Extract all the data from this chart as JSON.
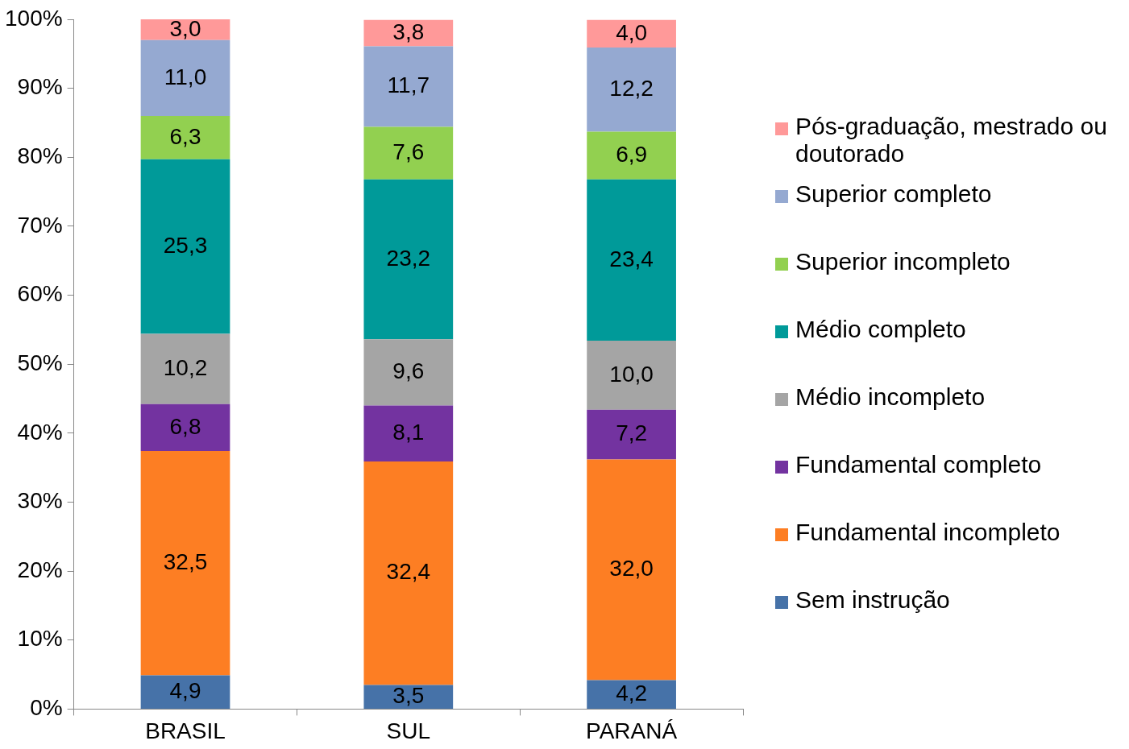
{
  "chart_data": {
    "type": "bar",
    "stacked": true,
    "categories": [
      "BRASIL",
      "SUL",
      "PARANÁ"
    ],
    "ylim": [
      0,
      100
    ],
    "yticks": [
      {
        "value": 0,
        "label": "0%"
      },
      {
        "value": 10,
        "label": "10%"
      },
      {
        "value": 20,
        "label": "20%"
      },
      {
        "value": 30,
        "label": "30%"
      },
      {
        "value": 40,
        "label": "40%"
      },
      {
        "value": 50,
        "label": "50%"
      },
      {
        "value": 60,
        "label": "60%"
      },
      {
        "value": 70,
        "label": "70%"
      },
      {
        "value": 80,
        "label": "80%"
      },
      {
        "value": 90,
        "label": "90%"
      },
      {
        "value": 100,
        "label": "100%"
      }
    ],
    "grid": false,
    "legend": "right",
    "series": [
      {
        "name": "Sem instrução",
        "color": "#4672a8",
        "values": [
          4.9,
          3.5,
          4.2
        ],
        "value_labels": [
          "4,9",
          "3,5",
          "4,2"
        ]
      },
      {
        "name": "Fundamental incompleto",
        "color": "#fd7e23",
        "values": [
          32.5,
          32.4,
          32.0
        ],
        "value_labels": [
          "32,5",
          "32,4",
          "32,0"
        ]
      },
      {
        "name": "Fundamental completo",
        "color": "#7333a0",
        "values": [
          6.8,
          8.1,
          7.2
        ],
        "value_labels": [
          "6,8",
          "8,1",
          "7,2"
        ]
      },
      {
        "name": "Médio incompleto",
        "color": "#a5a5a5",
        "values": [
          10.2,
          9.6,
          10.0
        ],
        "value_labels": [
          "10,2",
          "9,6",
          "10,0"
        ]
      },
      {
        "name": "Médio completo",
        "color": "#009a99",
        "values": [
          25.3,
          23.2,
          23.4
        ],
        "value_labels": [
          "25,3",
          "23,2",
          "23,4"
        ]
      },
      {
        "name": "Superior incompleto",
        "color": "#92d050",
        "values": [
          6.3,
          7.6,
          6.9
        ],
        "value_labels": [
          "6,3",
          "7,6",
          "6,9"
        ]
      },
      {
        "name": "Superior completo",
        "color": "#95a9d1",
        "values": [
          11.0,
          11.7,
          12.2
        ],
        "value_labels": [
          "11,0",
          "11,7",
          "12,2"
        ]
      },
      {
        "name": "Pós-graduação, mestrado ou doutorado",
        "color": "#ff9999",
        "values": [
          3.0,
          3.8,
          4.0
        ],
        "value_labels": [
          "3,0",
          "3,8",
          "4,0"
        ]
      }
    ]
  }
}
